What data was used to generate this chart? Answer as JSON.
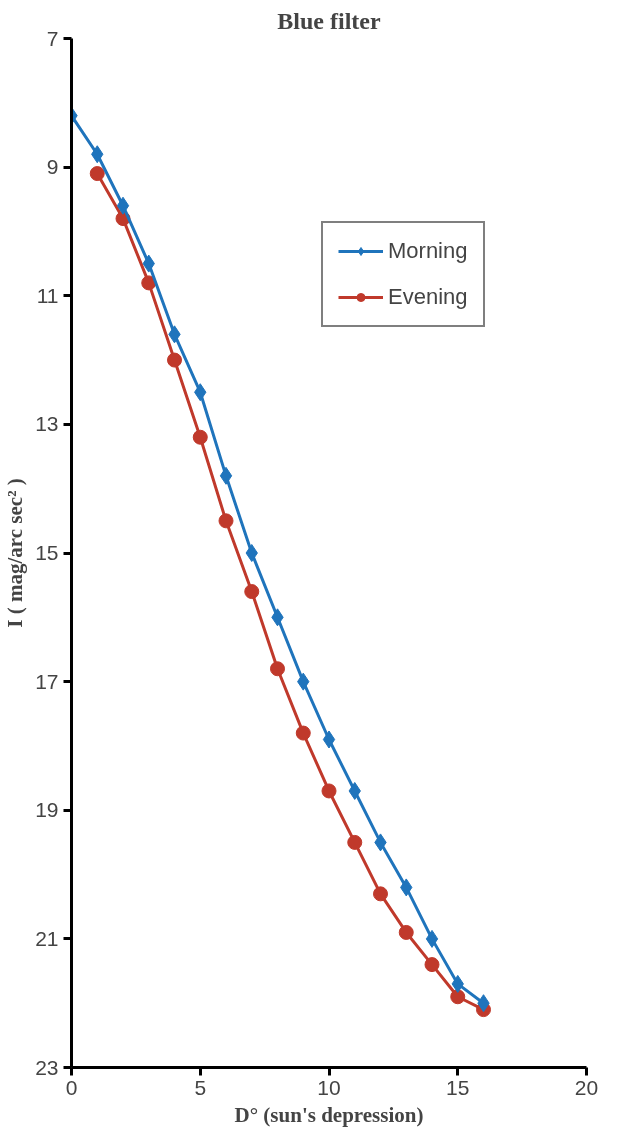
{
  "chart_data": {
    "type": "line",
    "title": "Blue filter",
    "xlabel": "D° (sun's depression)",
    "ylabel": "I ( mag/arc sec² )",
    "xlim": [
      0,
      20
    ],
    "xticks": [
      0,
      5,
      10,
      15,
      20
    ],
    "ylim": [
      23,
      7
    ],
    "yticks": [
      7,
      9,
      11,
      13,
      15,
      17,
      19,
      21,
      23
    ],
    "grid": false,
    "legend": "top right",
    "line_style": "solid",
    "series": [
      {
        "name": "Morning",
        "color": "#1f74bc",
        "marker": "diamond",
        "x": [
          0,
          1,
          2,
          3,
          4,
          5,
          6,
          7,
          8,
          9,
          10,
          11,
          12,
          13,
          14,
          15,
          16
        ],
        "values": [
          8.2,
          8.8,
          9.6,
          10.5,
          11.6,
          12.5,
          13.8,
          15.0,
          16.0,
          17.0,
          17.9,
          18.7,
          19.5,
          20.2,
          21.0,
          21.7,
          22.0
        ]
      },
      {
        "name": "Evening",
        "color": "#c0392b",
        "marker": "circle",
        "x": [
          1,
          2,
          3,
          4,
          5,
          6,
          7,
          8,
          9,
          10,
          11,
          12,
          13,
          14,
          15,
          16
        ],
        "values": [
          9.1,
          9.8,
          10.8,
          12.0,
          13.2,
          14.5,
          15.6,
          16.8,
          17.8,
          18.7,
          19.5,
          20.3,
          20.9,
          21.4,
          21.9,
          22.1
        ]
      }
    ]
  }
}
